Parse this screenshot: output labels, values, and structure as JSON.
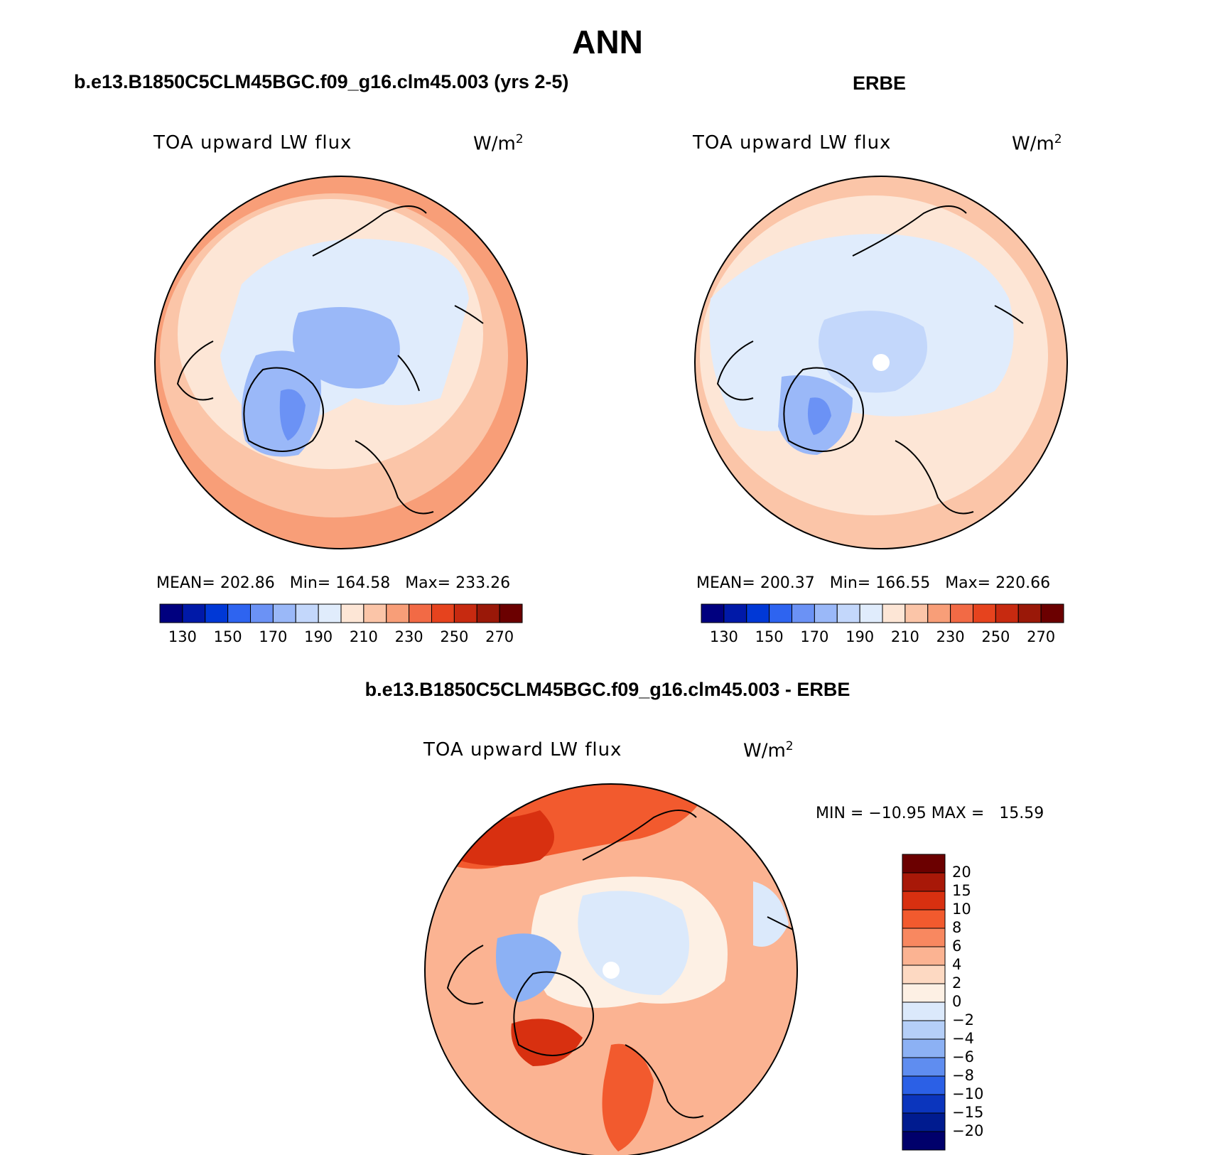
{
  "page_title": "ANN",
  "panels": [
    {
      "heading": "b.e13.B1850C5CLM45BGC.f09_g16.clm45.003 (yrs 2-5)",
      "variable": "TOA upward LW flux",
      "units": "W/m",
      "units_sup": "2",
      "stats": "MEAN= 202.86   Min= 164.58   Max= 233.26",
      "colorbar_labels": [
        "130",
        "150",
        "170",
        "190",
        "210",
        "230",
        "250",
        "270"
      ]
    },
    {
      "heading": "ERBE",
      "variable": "TOA upward LW flux",
      "units": "W/m",
      "units_sup": "2",
      "stats": "MEAN= 200.37   Min= 166.55   Max= 220.66",
      "colorbar_labels": [
        "130",
        "150",
        "170",
        "190",
        "210",
        "230",
        "250",
        "270"
      ]
    },
    {
      "heading": "b.e13.B1850C5CLM45BGC.f09_g16.clm45.003 - ERBE",
      "variable": "TOA upward LW flux",
      "units": "W/m",
      "units_sup": "2",
      "stats": "MIN = −10.95 MAX =   15.59",
      "colorbar_labels": [
        "20",
        "15",
        "10",
        "8",
        "6",
        "4",
        "2",
        "0",
        "−2",
        "−4",
        "−6",
        "−8",
        "−10",
        "−15",
        "−20"
      ]
    }
  ],
  "colors": {
    "abs_scale": [
      "#00007f",
      "#0019a8",
      "#0038d6",
      "#2e64f0",
      "#6b92f5",
      "#9ab8f8",
      "#c3d7fb",
      "#e0ecfc",
      "#fde6d6",
      "#fbc5a8",
      "#f89e78",
      "#f26a45",
      "#e6431e",
      "#c72a10",
      "#9a1808",
      "#6b0000"
    ],
    "diff_scale": [
      "#6b0000",
      "#a81808",
      "#d83010",
      "#f25a2e",
      "#f88860",
      "#fbb392",
      "#fdd9c2",
      "#fdf0e4",
      "#dbe9fb",
      "#b5cff8",
      "#8cb1f4",
      "#5f8df0",
      "#2b60e6",
      "#0b35bd",
      "#001b8f",
      "#00006b"
    ]
  }
}
